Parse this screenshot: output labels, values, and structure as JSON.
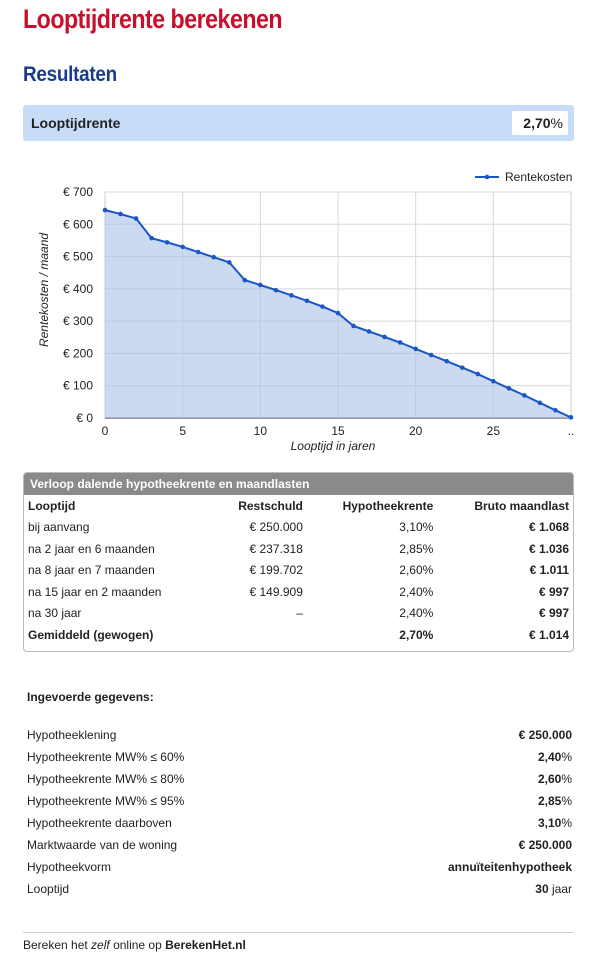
{
  "page": {
    "title": "Looptijdrente berekenen",
    "section": "Resultaten"
  },
  "result": {
    "label": "Looptijdrente",
    "value": "2,70",
    "unit": "%"
  },
  "chart_data": {
    "type": "area",
    "xlabel": "Looptijd in jaren",
    "ylabel": "Rentekosten / maand",
    "legend": "Rentekosten",
    "legend_position": "top-right",
    "color": "#1a56c4",
    "xlim": [
      0,
      30
    ],
    "ylim": [
      0,
      700
    ],
    "x_ticks": [
      "0",
      "5",
      "10",
      "15",
      "20",
      "25",
      ".."
    ],
    "y_ticks": [
      "€ 0",
      "€ 100",
      "€ 200",
      "€ 300",
      "€ 400",
      "€ 500",
      "€ 600",
      "€ 700"
    ],
    "x": [
      0,
      1,
      2,
      3,
      4,
      5,
      6,
      7,
      8,
      9,
      10,
      11,
      12,
      13,
      14,
      15,
      16,
      17,
      18,
      19,
      20,
      21,
      22,
      23,
      24,
      25,
      26,
      27,
      28,
      29,
      30
    ],
    "values": [
      644,
      632,
      618,
      557,
      544,
      530,
      514,
      498,
      482,
      427,
      412,
      396,
      380,
      363,
      345,
      325,
      285,
      268,
      251,
      234,
      214,
      195,
      176,
      156,
      136,
      114,
      92,
      70,
      47,
      24,
      2
    ]
  },
  "table": {
    "caption": "Verloop dalende hypotheekrente en maandlasten",
    "headers": [
      "Looptijd",
      "Restschuld",
      "Hypotheekrente",
      "Bruto maandlast"
    ],
    "rows": [
      [
        "bij aanvang",
        "€ 250.000",
        "3,10%",
        "€ 1.068"
      ],
      [
        "na 2 jaar en 6 maanden",
        "€ 237.318",
        "2,85%",
        "€ 1.036"
      ],
      [
        "na 8 jaar en 7 maanden",
        "€ 199.702",
        "2,60%",
        "€ 1.011"
      ],
      [
        "na 15 jaar en 2 maanden",
        "€ 149.909",
        "2,40%",
        "€ 997"
      ],
      [
        "na 30 jaar",
        "–",
        "2,40%",
        "€ 997"
      ]
    ],
    "total": [
      "Gemiddeld (gewogen)",
      "",
      "2,70%",
      "€ 1.014"
    ]
  },
  "inputs": {
    "title": "Ingevoerde gegevens:",
    "rows": [
      {
        "label": "Hypotheeklening",
        "value": "€ 250.000",
        "unit": ""
      },
      {
        "label": "Hypotheekrente MW% ≤ 60%",
        "value": "2,40",
        "unit": "%"
      },
      {
        "label": "Hypotheekrente MW% ≤ 80%",
        "value": "2,60",
        "unit": "%"
      },
      {
        "label": "Hypotheekrente MW% ≤ 95%",
        "value": "2,85",
        "unit": "%"
      },
      {
        "label": "Hypotheekrente daarboven",
        "value": "3,10",
        "unit": "%"
      },
      {
        "label": "Marktwaarde van de woning",
        "value": "€ 250.000",
        "unit": ""
      },
      {
        "label": "Hypotheekvorm",
        "value": "annuïteitenhypotheek",
        "unit": ""
      },
      {
        "label": "Looptijd",
        "value": "30",
        "unit": " jaar"
      }
    ]
  },
  "footer": {
    "prefix": "Bereken het ",
    "em": "zelf",
    "middle": " online op ",
    "brand": "BerekenHet.nl"
  }
}
